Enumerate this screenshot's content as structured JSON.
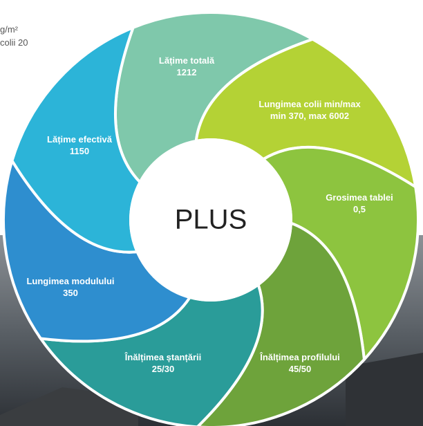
{
  "side_text": [
    "g/m²",
    "colii 20"
  ],
  "center": "PLUS",
  "segments": [
    {
      "label": "Lățime totală",
      "value": "1212",
      "color": "#7fc8ab"
    },
    {
      "label": "Lungimea colii min/max",
      "value": "min 370, max 6002",
      "color": "#b4d235"
    },
    {
      "label": "Grosimea tablei",
      "value": "0,5",
      "color": "#8dc43f"
    },
    {
      "label": "Înălțimea profilului",
      "value": "45/50",
      "color": "#6ea33b"
    },
    {
      "label": "Înălțimea ștanțării",
      "value": "25/30",
      "color": "#2a9c99"
    },
    {
      "label": "Lungimea modulului",
      "value": "350",
      "color": "#2e8ecf"
    },
    {
      "label": "Lățime efectivă",
      "value": "1150",
      "color": "#2cb4d8"
    }
  ]
}
